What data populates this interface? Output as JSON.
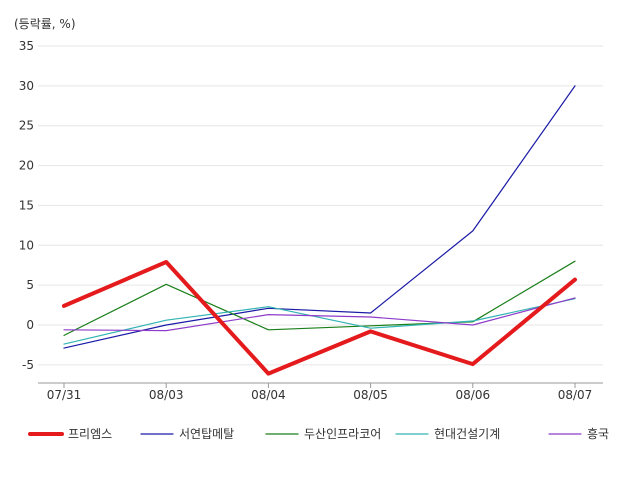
{
  "chart_data": {
    "type": "line",
    "unit_label": "(등락률, %)",
    "categories": [
      "07/31",
      "08/03",
      "08/04",
      "08/05",
      "08/06",
      "08/07"
    ],
    "ylim": [
      -7.5,
      35
    ],
    "yticks": [
      35,
      30,
      25,
      20,
      15,
      10,
      5,
      0,
      -5
    ],
    "grid": "horizontal",
    "legend_position": "bottom",
    "series": [
      {
        "name": "프리엠스",
        "values": [
          2.4,
          7.9,
          -6.1,
          -0.8,
          -4.9,
          5.7
        ],
        "color": "#e41a1c",
        "emphasis": true
      },
      {
        "name": "서연탑메탈",
        "values": [
          -2.9,
          0.0,
          2.1,
          1.5,
          11.8,
          30.0
        ],
        "color": "#1a1aa6"
      },
      {
        "name": "두산인프라코어",
        "values": [
          -1.3,
          5.1,
          -0.6,
          -0.1,
          0.4,
          8.0
        ],
        "color": "#1a7f1a"
      },
      {
        "name": "현대건설기계",
        "values": [
          -2.4,
          0.6,
          2.3,
          -0.4,
          0.5,
          3.3
        ],
        "color": "#33b3b3"
      },
      {
        "name": "흥국",
        "values": [
          -0.6,
          -0.7,
          1.3,
          1.0,
          0.0,
          3.4
        ],
        "color": "#8e3cc9"
      }
    ]
  }
}
